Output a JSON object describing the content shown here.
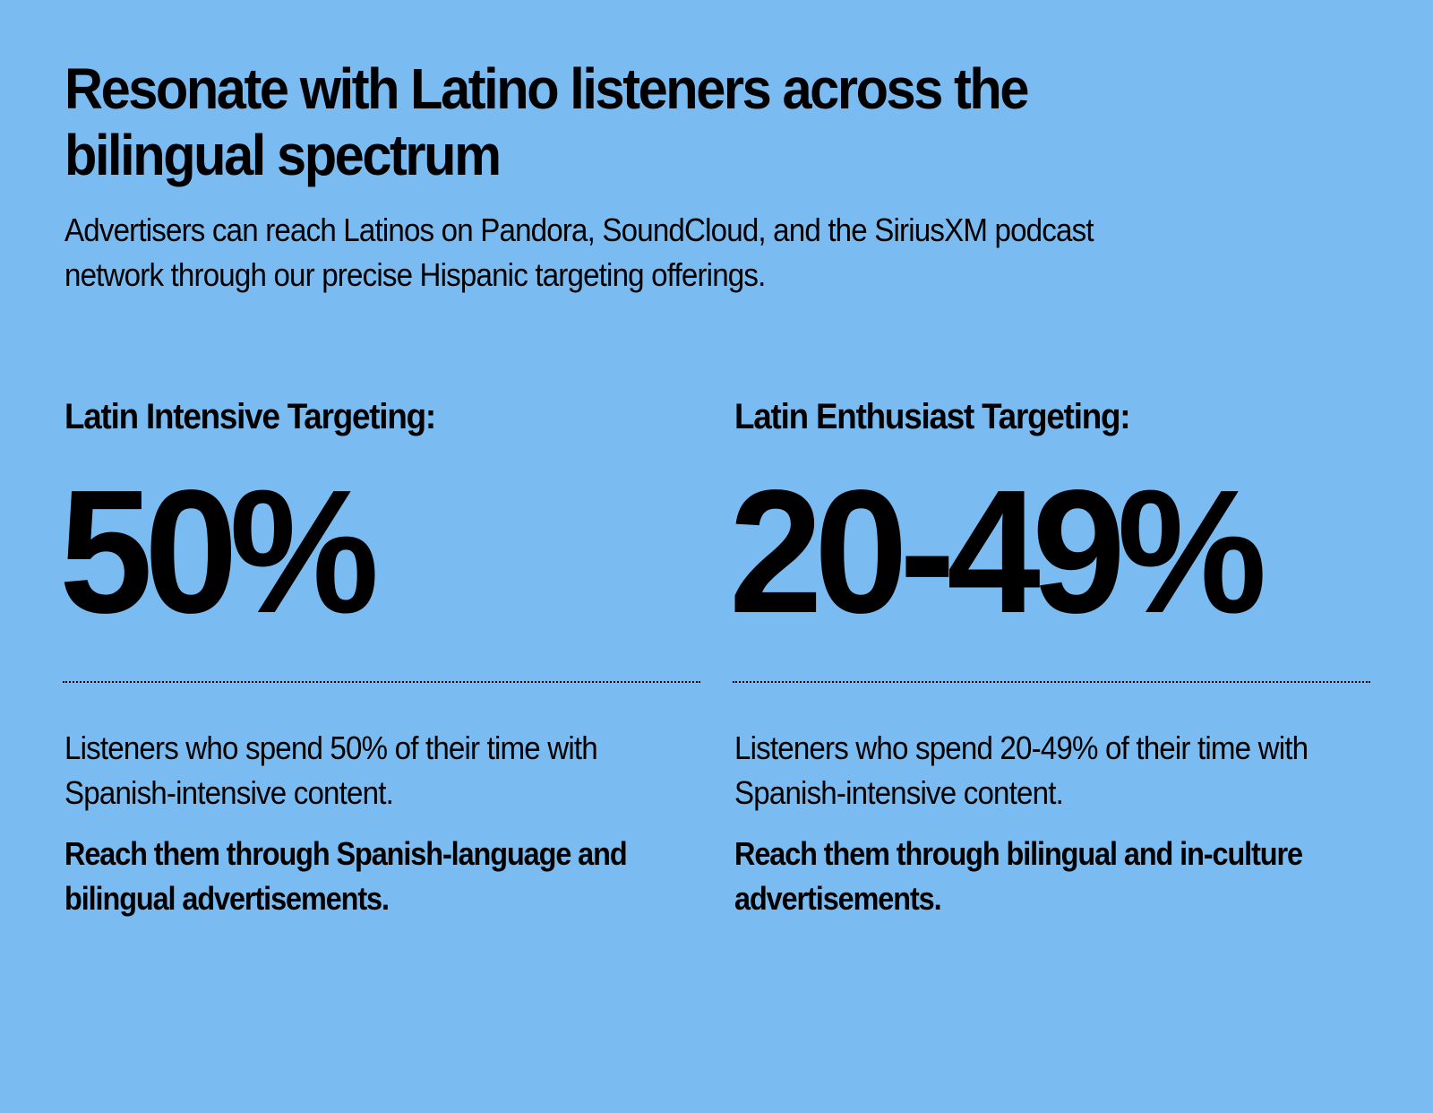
{
  "colors": {
    "background": "#7abcf1",
    "text": "#000000"
  },
  "header": {
    "title": "Resonate with Latino listeners across the bilingual spectrum",
    "subtitle": "Advertisers can reach Latinos on Pandora, SoundCloud, and the SiriusXM podcast network through our precise Hispanic targeting offerings."
  },
  "columns": [
    {
      "heading": "Latin Intensive Targeting:",
      "stat": "50%",
      "description": "Listeners who spend 50% of their time with Spanish-intensive content.",
      "cta": "Reach them through Spanish-language and bilingual advertisements."
    },
    {
      "heading": "Latin Enthusiast Targeting:",
      "stat": "20-49%",
      "description": "Listeners who spend 20-49% of their time with Spanish-intensive content.",
      "cta": "Reach them through bilingual and in-culture advertisements."
    }
  ]
}
